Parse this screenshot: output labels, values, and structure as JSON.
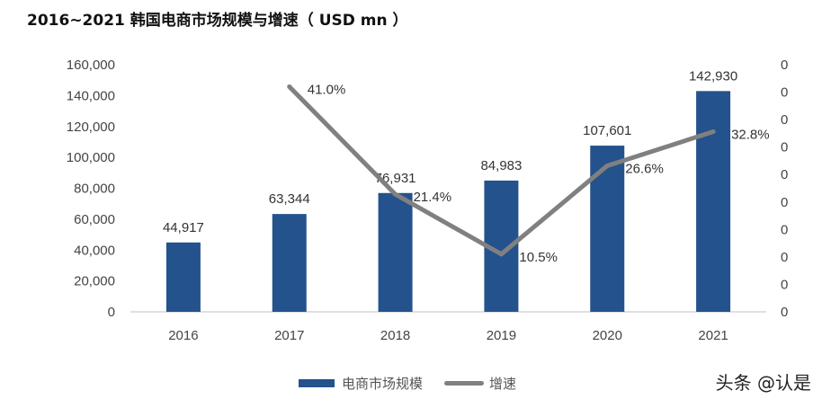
{
  "title": "2016~2021 韩国电商市场规模与增速（ USD mn ）",
  "watermark": "头条 @认是",
  "chart_data": {
    "type": "bar+line",
    "title": "2016~2021 韩国电商市场规模与增速（ USD mn ）",
    "categories": [
      "2016",
      "2017",
      "2018",
      "2019",
      "2020",
      "2021"
    ],
    "series": [
      {
        "name": "电商市场规模",
        "type": "bar",
        "axis": "left",
        "color": "#24528c",
        "values": [
          44917,
          63344,
          76931,
          84983,
          107601,
          142930
        ],
        "labels": [
          "44,917",
          "63,344",
          "76,931",
          "84,983",
          "107,601",
          "142,930"
        ]
      },
      {
        "name": "增速",
        "type": "line",
        "axis": "right",
        "color": "#808080",
        "values": [
          null,
          0.41,
          0.214,
          0.105,
          0.266,
          0.328
        ],
        "labels": [
          "",
          "41.0%",
          "21.4%",
          "10.5%",
          "26.6%",
          "32.8%"
        ]
      }
    ],
    "left_axis": {
      "ylim": [
        0,
        160000
      ],
      "ticks": [
        "0",
        "20,000",
        "40,000",
        "60,000",
        "80,000",
        "100,000",
        "120,000",
        "140,000",
        "160,000"
      ]
    },
    "right_axis": {
      "ylim": [
        0,
        0.45
      ],
      "ticks": [
        "0",
        "0",
        "0",
        "0",
        "0",
        "0",
        "0",
        "0",
        "0",
        "0"
      ]
    },
    "grid": false,
    "legend": "bottom"
  }
}
